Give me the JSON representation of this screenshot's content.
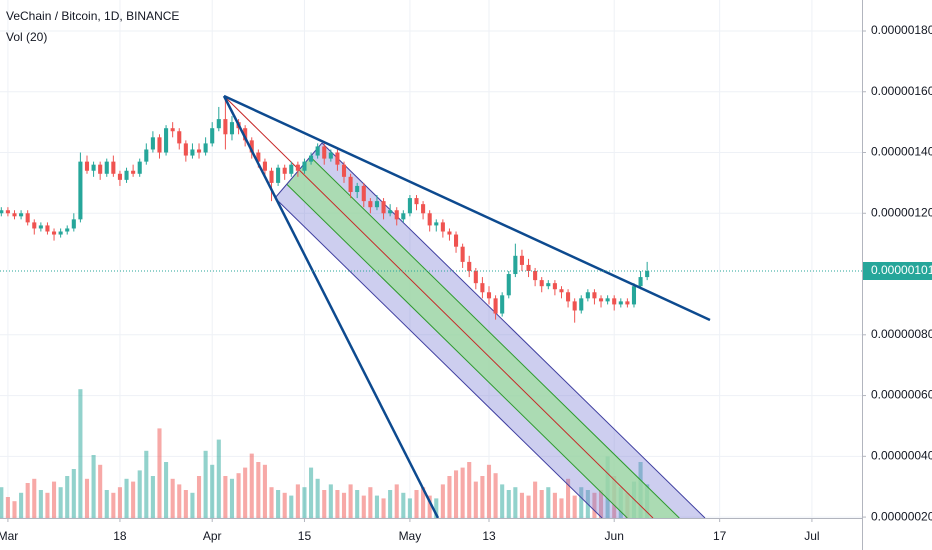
{
  "chart_data": {
    "type": "candlestick",
    "title": "VeChain / Bitcoin, 1D, BINANCE",
    "subtitle": "Vol (20)",
    "x": [
      -1,
      0,
      1,
      2,
      3,
      4,
      5,
      6,
      7,
      8,
      9,
      10,
      11,
      12,
      13,
      14,
      15,
      16,
      17,
      18,
      19,
      20,
      21,
      22,
      23,
      24,
      25,
      26,
      27,
      28,
      29,
      30,
      31,
      32,
      33,
      34,
      35,
      36,
      37,
      38,
      39,
      40,
      41,
      42,
      43,
      44,
      45,
      46,
      47,
      48,
      49,
      50,
      51,
      52,
      53,
      54,
      55,
      56,
      57,
      58,
      59,
      60,
      61,
      62,
      63,
      64,
      65,
      66,
      67,
      68,
      69,
      70,
      71,
      72,
      73,
      74,
      75,
      76,
      77,
      78,
      79,
      80,
      81,
      82,
      83,
      84,
      85,
      86,
      87,
      88,
      89,
      90,
      91,
      92,
      93,
      94,
      95,
      96,
      97
    ],
    "ohlc": [
      [
        1.2e-06,
        1.22e-06,
        1.19e-06,
        1.21e-06
      ],
      [
        1.21e-06,
        1.22e-06,
        1.19e-06,
        1.2e-06
      ],
      [
        1.2e-06,
        1.21e-06,
        1.18e-06,
        1.19e-06
      ],
      [
        1.19e-06,
        1.21e-06,
        1.18e-06,
        1.2e-06
      ],
      [
        1.2e-06,
        1.21e-06,
        1.16e-06,
        1.17e-06
      ],
      [
        1.17e-06,
        1.18e-06,
        1.13e-06,
        1.15e-06
      ],
      [
        1.15e-06,
        1.17e-06,
        1.14e-06,
        1.16e-06
      ],
      [
        1.16e-06,
        1.17e-06,
        1.13e-06,
        1.14e-06
      ],
      [
        1.14e-06,
        1.15e-06,
        1.11e-06,
        1.13e-06
      ],
      [
        1.13e-06,
        1.15e-06,
        1.12e-06,
        1.14e-06
      ],
      [
        1.14e-06,
        1.16e-06,
        1.13e-06,
        1.15e-06
      ],
      [
        1.15e-06,
        1.2e-06,
        1.14e-06,
        1.18e-06
      ],
      [
        1.18e-06,
        1.4e-06,
        1.17e-06,
        1.37e-06
      ],
      [
        1.37e-06,
        1.39e-06,
        1.33e-06,
        1.34e-06
      ],
      [
        1.34e-06,
        1.37e-06,
        1.32e-06,
        1.36e-06
      ],
      [
        1.36e-06,
        1.37e-06,
        1.31e-06,
        1.33e-06
      ],
      [
        1.33e-06,
        1.38e-06,
        1.32e-06,
        1.37e-06
      ],
      [
        1.37e-06,
        1.39e-06,
        1.32e-06,
        1.33e-06
      ],
      [
        1.33e-06,
        1.34e-06,
        1.29e-06,
        1.31e-06
      ],
      [
        1.31e-06,
        1.35e-06,
        1.3e-06,
        1.34e-06
      ],
      [
        1.34e-06,
        1.36e-06,
        1.32e-06,
        1.33e-06
      ],
      [
        1.33e-06,
        1.38e-06,
        1.32e-06,
        1.37e-06
      ],
      [
        1.37e-06,
        1.43e-06,
        1.36e-06,
        1.41e-06
      ],
      [
        1.41e-06,
        1.47e-06,
        1.4e-06,
        1.45e-06
      ],
      [
        1.45e-06,
        1.46e-06,
        1.38e-06,
        1.4e-06
      ],
      [
        1.4e-06,
        1.49e-06,
        1.39e-06,
        1.48e-06
      ],
      [
        1.48e-06,
        1.5e-06,
        1.45e-06,
        1.47e-06
      ],
      [
        1.47e-06,
        1.48e-06,
        1.41e-06,
        1.43e-06
      ],
      [
        1.43e-06,
        1.44e-06,
        1.37e-06,
        1.39e-06
      ],
      [
        1.39e-06,
        1.43e-06,
        1.38e-06,
        1.41e-06
      ],
      [
        1.41e-06,
        1.43e-06,
        1.38e-06,
        1.4e-06
      ],
      [
        1.4e-06,
        1.45e-06,
        1.39e-06,
        1.43e-06
      ],
      [
        1.43e-06,
        1.5e-06,
        1.42e-06,
        1.48e-06
      ],
      [
        1.48e-06,
        1.55e-06,
        1.47e-06,
        1.51e-06
      ],
      [
        1.51e-06,
        1.58e-06,
        1.41e-06,
        1.46e-06
      ],
      [
        1.46e-06,
        1.52e-06,
        1.44e-06,
        1.5e-06
      ],
      [
        1.5e-06,
        1.51e-06,
        1.46e-06,
        1.48e-06
      ],
      [
        1.48e-06,
        1.49e-06,
        1.42e-06,
        1.44e-06
      ],
      [
        1.44e-06,
        1.45e-06,
        1.38e-06,
        1.4e-06
      ],
      [
        1.4e-06,
        1.41e-06,
        1.35e-06,
        1.37e-06
      ],
      [
        1.37e-06,
        1.38e-06,
        1.32e-06,
        1.34e-06
      ],
      [
        1.34e-06,
        1.35e-06,
        1.24e-06,
        1.3e-06
      ],
      [
        1.3e-06,
        1.36e-06,
        1.29e-06,
        1.35e-06
      ],
      [
        1.35e-06,
        1.36e-06,
        1.31e-06,
        1.33e-06
      ],
      [
        1.33e-06,
        1.37e-06,
        1.32e-06,
        1.36e-06
      ],
      [
        1.36e-06,
        1.37e-06,
        1.32e-06,
        1.34e-06
      ],
      [
        1.34e-06,
        1.38e-06,
        1.33e-06,
        1.37e-06
      ],
      [
        1.37e-06,
        1.4e-06,
        1.36e-06,
        1.39e-06
      ],
      [
        1.39e-06,
        1.43e-06,
        1.38e-06,
        1.42e-06
      ],
      [
        1.42e-06,
        1.43e-06,
        1.36e-06,
        1.38e-06
      ],
      [
        1.38e-06,
        1.41e-06,
        1.37e-06,
        1.4e-06
      ],
      [
        1.4e-06,
        1.41e-06,
        1.34e-06,
        1.36e-06
      ],
      [
        1.36e-06,
        1.37e-06,
        1.3e-06,
        1.32e-06
      ],
      [
        1.32e-06,
        1.33e-06,
        1.25e-06,
        1.27e-06
      ],
      [
        1.27e-06,
        1.3e-06,
        1.25e-06,
        1.29e-06
      ],
      [
        1.29e-06,
        1.3e-06,
        1.22e-06,
        1.24e-06
      ],
      [
        1.24e-06,
        1.25e-06,
        1.2e-06,
        1.22e-06
      ],
      [
        1.22e-06,
        1.26e-06,
        1.21e-06,
        1.24e-06
      ],
      [
        1.24e-06,
        1.25e-06,
        1.18e-06,
        1.2e-06
      ],
      [
        1.2e-06,
        1.23e-06,
        1.19e-06,
        1.21e-06
      ],
      [
        1.21e-06,
        1.22e-06,
        1.16e-06,
        1.18e-06
      ],
      [
        1.18e-06,
        1.21e-06,
        1.17e-06,
        1.2e-06
      ],
      [
        1.2e-06,
        1.26e-06,
        1.19e-06,
        1.25e-06
      ],
      [
        1.25e-06,
        1.26e-06,
        1.21e-06,
        1.23e-06
      ],
      [
        1.23e-06,
        1.24e-06,
        1.18e-06,
        1.2e-06
      ],
      [
        1.2e-06,
        1.21e-06,
        1.14e-06,
        1.16e-06
      ],
      [
        1.16e-06,
        1.18e-06,
        1.14e-06,
        1.17e-06
      ],
      [
        1.17e-06,
        1.18e-06,
        1.12e-06,
        1.14e-06
      ],
      [
        1.14e-06,
        1.15e-06,
        1.11e-06,
        1.13e-06
      ],
      [
        1.13e-06,
        1.14e-06,
        1.07e-06,
        1.09e-06
      ],
      [
        1.09e-06,
        1.1e-06,
        1.02e-06,
        1.04e-06
      ],
      [
        1.04e-06,
        1.06e-06,
        9.9e-07,
        1.01e-06
      ],
      [
        1.01e-06,
        1.02e-06,
        9.5e-07,
        9.7e-07
      ],
      [
        9.7e-07,
        9.9e-07,
        9.2e-07,
        9.4e-07
      ],
      [
        9.4e-07,
        9.6e-07,
        9e-07,
        9.2e-07
      ],
      [
        9.2e-07,
        9.3e-07,
        8.5e-07,
        8.7e-07
      ],
      [
        8.7e-07,
        9.4e-07,
        8.6e-07,
        9.3e-07
      ],
      [
        9.3e-07,
        1.01e-06,
        9.2e-07,
        1e-06
      ],
      [
        1e-06,
        1.1e-06,
        9.9e-07,
        1.06e-06
      ],
      [
        1.06e-06,
        1.08e-06,
        1.01e-06,
        1.03e-06
      ],
      [
        1.03e-06,
        1.05e-06,
        9.9e-07,
        1.01e-06
      ],
      [
        1.01e-06,
        1.02e-06,
        9.6e-07,
        9.8e-07
      ],
      [
        9.8e-07,
        9.9e-07,
        9.4e-07,
        9.6e-07
      ],
      [
        9.6e-07,
        9.8e-07,
        9.5e-07,
        9.7e-07
      ],
      [
        9.7e-07,
        9.8e-07,
        9.3e-07,
        9.5e-07
      ],
      [
        9.5e-07,
        9.6e-07,
        9.2e-07,
        9.4e-07
      ],
      [
        9.4e-07,
        9.5e-07,
        8.9e-07,
        9.1e-07
      ],
      [
        9.1e-07,
        9.2e-07,
        8.4e-07,
        8.8e-07
      ],
      [
        8.8e-07,
        9.3e-07,
        8.7e-07,
        9.2e-07
      ],
      [
        9.2e-07,
        9.5e-07,
        9.1e-07,
        9.4e-07
      ],
      [
        9.4e-07,
        9.5e-07,
        9e-07,
        9.2e-07
      ],
      [
        9.2e-07,
        9.3e-07,
        8.9e-07,
        9.1e-07
      ],
      [
        9.1e-07,
        9.3e-07,
        9e-07,
        9.2e-07
      ],
      [
        9.2e-07,
        9.3e-07,
        8.8e-07,
        9e-07
      ],
      [
        9e-07,
        9.2e-07,
        8.9e-07,
        9.1e-07
      ],
      [
        9.1e-07,
        9.2e-07,
        8.9e-07,
        9e-07
      ],
      [
        9e-07,
        9.7e-07,
        8.9e-07,
        9.6e-07
      ],
      [
        9.6e-07,
        1.01e-06,
        9.5e-07,
        9.9e-07
      ],
      [
        9.9e-07,
        1.04e-06,
        9.8e-07,
        1.01e-06
      ]
    ],
    "volume": [
      22,
      15,
      12,
      18,
      25,
      28,
      20,
      18,
      26,
      22,
      30,
      35,
      92,
      28,
      45,
      38,
      20,
      18,
      22,
      28,
      26,
      34,
      48,
      30,
      64,
      40,
      28,
      24,
      20,
      18,
      30,
      48,
      38,
      56,
      30,
      28,
      32,
      36,
      46,
      40,
      38,
      22,
      20,
      18,
      16,
      24,
      22,
      36,
      28,
      20,
      24,
      20,
      18,
      24,
      20,
      16,
      22,
      16,
      14,
      20,
      24,
      18,
      14,
      20,
      22,
      16,
      14,
      24,
      30,
      34,
      36,
      40,
      26,
      30,
      38,
      32,
      24,
      20,
      22,
      18,
      16,
      26,
      20,
      22,
      18,
      14,
      28,
      16,
      22,
      20,
      18,
      20,
      44,
      30,
      22,
      18,
      26,
      40,
      24
    ],
    "volume_lim": [
      0,
      100
    ],
    "up_color": "#26a69a",
    "down_color": "#ef5350",
    "xlim": [
      -1.2,
      129.6
    ],
    "xticks": [
      {
        "value": 0,
        "label": "Mar"
      },
      {
        "value": 17,
        "label": "18"
      },
      {
        "value": 31,
        "label": "Apr"
      },
      {
        "value": 45,
        "label": "15"
      },
      {
        "value": 61,
        "label": "May"
      },
      {
        "value": 73,
        "label": "13"
      },
      {
        "value": 92,
        "label": "Jun"
      },
      {
        "value": 108,
        "label": "17"
      },
      {
        "value": 122,
        "label": "Jul"
      }
    ],
    "ylim": [
      1.97e-07,
      1.902e-06
    ],
    "yticks": [
      {
        "value": 1.8e-06,
        "label": "0.00000180"
      },
      {
        "value": 1.6e-06,
        "label": "0.00000160"
      },
      {
        "value": 1.4e-06,
        "label": "0.00000140"
      },
      {
        "value": 1.2e-06,
        "label": "0.00000120"
      },
      {
        "value": 8e-07,
        "label": "0.00000080"
      },
      {
        "value": 6e-07,
        "label": "0.00000060"
      },
      {
        "value": 4e-07,
        "label": "0.00000040"
      },
      {
        "value": 2e-07,
        "label": "0.00000020"
      }
    ],
    "last_price": {
      "value": 1.01e-06,
      "label": "0.00000101"
    },
    "grid": true
  }
}
